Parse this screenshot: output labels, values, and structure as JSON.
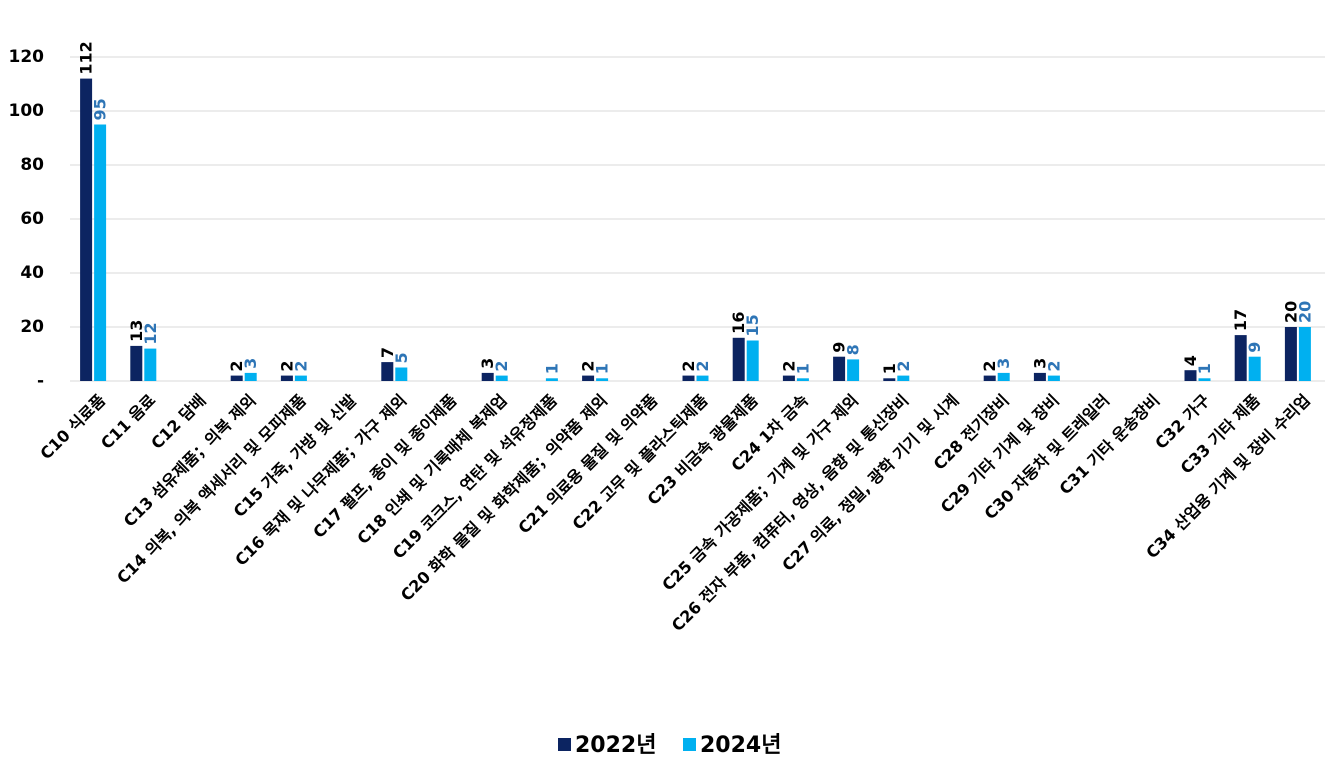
{
  "chart_data": {
    "type": "bar",
    "categories": [
      "C10 식료품",
      "C11 음료",
      "C12 담배",
      "C13 섬유제품；의복 제외",
      "C14 의복, 의복 액세서리 및 모피제품",
      "C15 가죽, 가방 및 신발",
      "C16 목재 및 나무제품；가구 제외",
      "C17 펄프, 종이 및 종이제품",
      "C18 인쇄 및 기록매체 복제업",
      "C19 코크스, 연탄 및 석유정제품",
      "C20 화학 물질 및 화학제품；의약품 제외",
      "C21 의료용 물질 및 의약품",
      "C22 고무 및 플라스틱제품",
      "C23 비금속 광물제품",
      "C24 1차 금속",
      "C25 금속 가공제품；기계 및 가구 제외",
      "C26 전자 부품, 컴퓨터, 영상, 음향 및 통신장비",
      "C27 의료, 정밀, 광학 기기 및 시계",
      "C28 전기장비",
      "C29 기타 기계 및 장비",
      "C30 자동차 및 트레일러",
      "C31 기타 운송장비",
      "C32 가구",
      "C33 기타 제품",
      "C34 산업용 기계 및 장비 수리업"
    ],
    "series": [
      {
        "name": "2022년",
        "color": "#0c2461",
        "label_color": "#000000",
        "values": [
          112,
          13,
          null,
          2,
          2,
          null,
          7,
          null,
          3,
          null,
          2,
          null,
          2,
          16,
          2,
          9,
          1,
          null,
          2,
          3,
          null,
          null,
          4,
          17,
          20
        ]
      },
      {
        "name": "2024년",
        "color": "#00b0f0",
        "label_color": "#2e75b6",
        "values": [
          95,
          12,
          null,
          3,
          2,
          null,
          5,
          null,
          2,
          1,
          1,
          null,
          2,
          15,
          1,
          8,
          2,
          null,
          3,
          2,
          null,
          null,
          1,
          9,
          20
        ]
      }
    ],
    "ylim": [
      0,
      120
    ],
    "yticks": [
      {
        "value": 0,
        "label": "-"
      },
      20,
      40,
      60,
      80,
      100,
      120
    ],
    "grid": true,
    "legend": "bottom"
  }
}
